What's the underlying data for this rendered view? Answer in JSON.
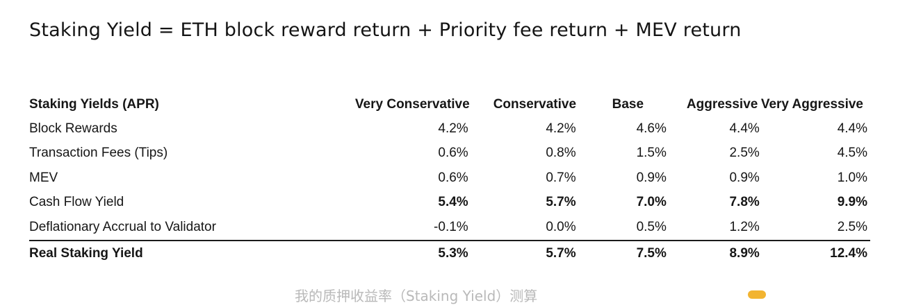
{
  "title": "Staking Yield = ETH block reward return + Priority fee return + MEV return",
  "table": {
    "header": {
      "label": "Staking Yields (APR)",
      "columns": [
        "Very Conservative",
        "Conservative",
        "Base",
        "Aggressive",
        "Very Aggressive"
      ]
    },
    "rows": [
      {
        "label": "Block Rewards",
        "values": [
          "4.2%",
          "4.2%",
          "4.6%",
          "4.4%",
          "4.4%"
        ]
      },
      {
        "label": "Transaction Fees (Tips)",
        "values": [
          "0.6%",
          "0.8%",
          "1.5%",
          "2.5%",
          "4.5%"
        ]
      },
      {
        "label": "MEV",
        "values": [
          "0.6%",
          "0.7%",
          "0.9%",
          "0.9%",
          "1.0%"
        ]
      },
      {
        "label": "Cash Flow Yield",
        "values": [
          "5.4%",
          "5.7%",
          "7.0%",
          "7.8%",
          "9.9%"
        ]
      },
      {
        "label": "Deflationary Accrual to Validator",
        "values": [
          "-0.1%",
          "0.0%",
          "0.5%",
          "1.2%",
          "2.5%"
        ]
      },
      {
        "label": "Real Staking Yield",
        "values": [
          "5.3%",
          "5.7%",
          "7.5%",
          "8.9%",
          "12.4%"
        ]
      }
    ]
  },
  "caption": "我的质押收益率（Staking Yield）测算",
  "colors": {
    "text": "#161616",
    "rule": "#1a1a1a",
    "caption": "#b9b9b9",
    "logo": "#f2b431"
  }
}
